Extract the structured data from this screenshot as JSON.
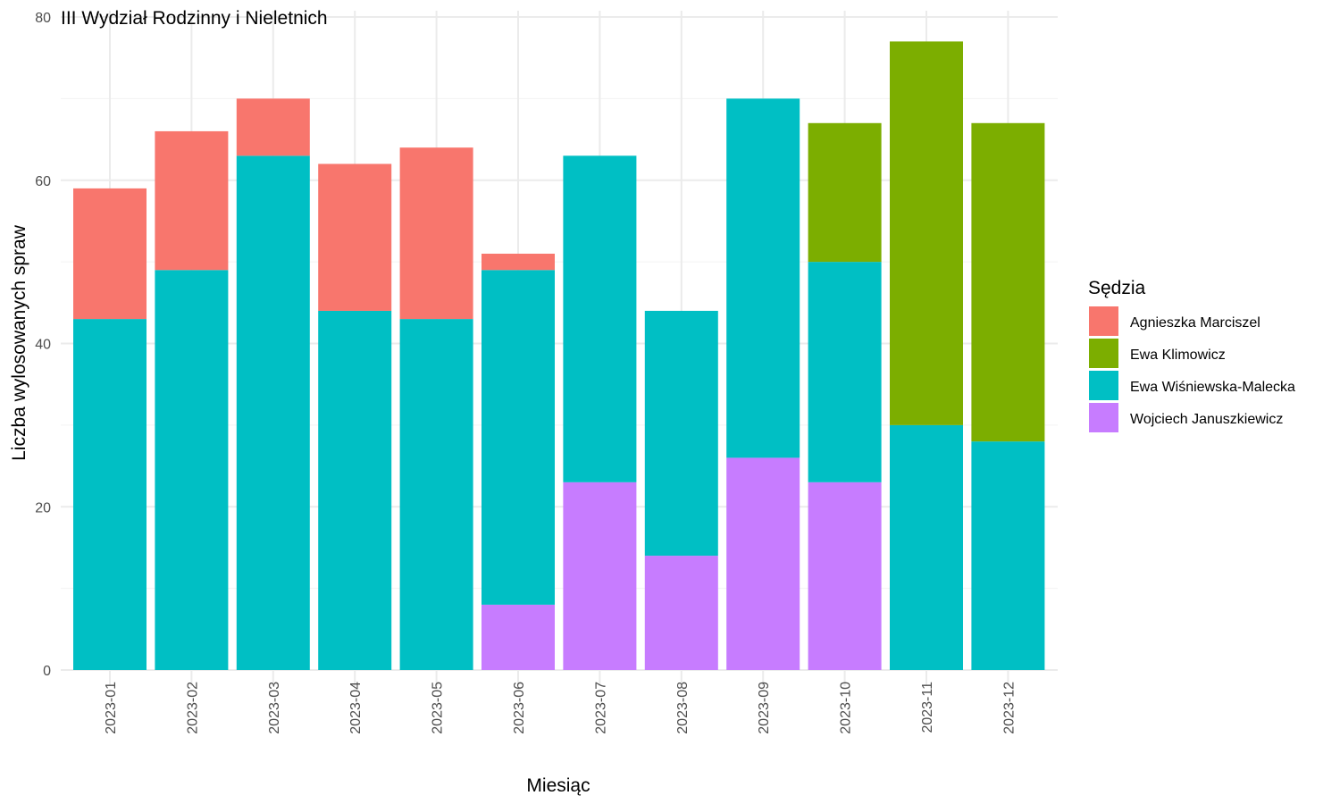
{
  "chart_data": {
    "type": "bar",
    "stacked": true,
    "title": "III Wydział Rodzinny i Nieletnich",
    "xlabel": "Miesiąc",
    "ylabel": "Liczba wylosowanych spraw",
    "ylim": [
      0,
      80
    ],
    "yticks": [
      0,
      20,
      40,
      60,
      80
    ],
    "grid": true,
    "legend_title": "Sędzia",
    "legend_position": "right",
    "categories": [
      "2023-01",
      "2023-02",
      "2023-03",
      "2023-04",
      "2023-05",
      "2023-06",
      "2023-07",
      "2023-08",
      "2023-09",
      "2023-10",
      "2023-11",
      "2023-12"
    ],
    "series": [
      {
        "name": "Agnieszka Marciszel",
        "color": "#F8766D",
        "values": [
          16,
          17,
          7,
          18,
          21,
          2,
          0,
          0,
          0,
          0,
          0,
          0
        ]
      },
      {
        "name": "Ewa Klimowicz",
        "color": "#7CAE00",
        "values": [
          0,
          0,
          0,
          0,
          0,
          0,
          0,
          0,
          0,
          17,
          47,
          39
        ]
      },
      {
        "name": "Ewa Wiśniewska-Malecka",
        "color": "#00BFC4",
        "values": [
          43,
          49,
          63,
          44,
          43,
          41,
          40,
          30,
          44,
          27,
          30,
          28
        ]
      },
      {
        "name": "Wojciech Januszkiewicz",
        "color": "#C77CFF",
        "values": [
          0,
          0,
          0,
          0,
          0,
          8,
          23,
          14,
          26,
          23,
          0,
          0
        ]
      }
    ]
  }
}
